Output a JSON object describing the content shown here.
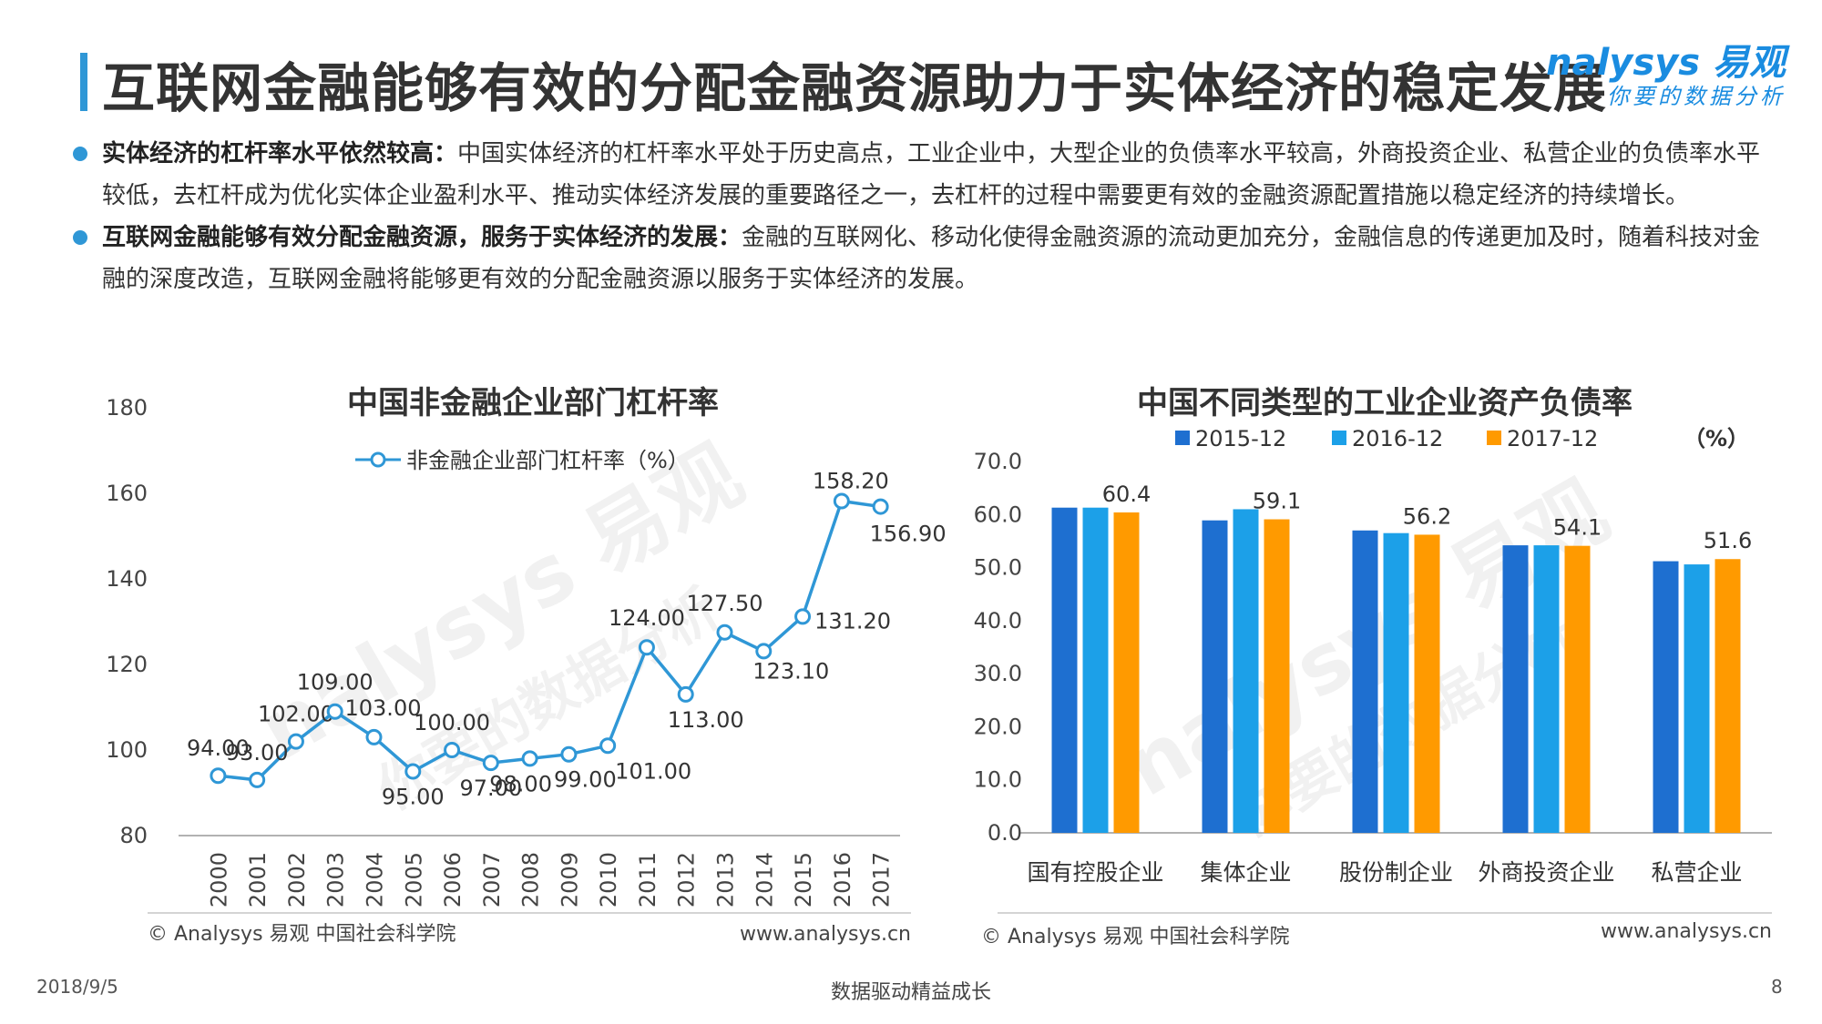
{
  "header": {
    "title": "互联网金融能够有效的分配金融资源助力于实体经济的稳定发展",
    "logo_text": "nalysys 易观",
    "logo_sub": "你要的数据分析"
  },
  "bullets": [
    {
      "bold": "实体经济的杠杆率水平依然较高：",
      "text": "中国实体经济的杠杆率水平处于历史高点，工业企业中，大型企业的负债率水平较高，外商投资企业、私营企业的负债率水平较低，去杠杆成为优化实体企业盈利水平、推动实体经济发展的重要路径之一，去杠杆的过程中需要更有效的金融资源配置措施以稳定经济的持续增长。"
    },
    {
      "bold": "互联网金融能够有效分配金融资源，服务于实体经济的发展：",
      "text": "金融的互联网化、移动化使得金融资源的流动更加充分，金融信息的传递更加及时，随着科技对金融的深度改造，互联网金融将能够更有效的分配金融资源以服务于实体经济的发展。"
    }
  ],
  "chart_data": [
    {
      "type": "line",
      "title": "中国非金融企业部门杠杆率",
      "series": [
        {
          "name": "非金融企业部门杠杆率（%）",
          "x": [
            "2000",
            "2001",
            "2002",
            "2003",
            "2004",
            "2005",
            "2006",
            "2007",
            "2008",
            "2009",
            "2010",
            "2011",
            "2012",
            "2013",
            "2014",
            "2015",
            "2016",
            "2017"
          ],
          "values": [
            94.0,
            93.0,
            102.0,
            109.0,
            103.0,
            95.0,
            100.0,
            97.0,
            98.0,
            99.0,
            101.0,
            124.0,
            113.0,
            127.5,
            123.1,
            131.2,
            158.2,
            156.9
          ]
        }
      ],
      "value_labels": [
        "94.00",
        "93.00",
        "102.00",
        "109.00",
        "103.00",
        "95.00",
        "100.00",
        "97.00",
        "98.00",
        "99.00",
        "101.00",
        "124.00",
        "113.00",
        "127.50",
        "123.10",
        "131.20",
        "158.20",
        "156.90"
      ],
      "ylim": [
        80,
        180
      ],
      "yticks": [
        "80",
        "100",
        "120",
        "140",
        "160",
        "180"
      ],
      "color": "#2f97d6",
      "source": "© Analysys 易观 中国社会科学院",
      "url": "www.analysys.cn"
    },
    {
      "type": "bar",
      "title": "中国不同类型的工业企业资产负债率",
      "unit": "（%）",
      "categories": [
        "国有控股企业",
        "集体企业",
        "股份制企业",
        "外商投资企业",
        "私营企业"
      ],
      "series": [
        {
          "name": "2015-12",
          "color": "#1e6fd0",
          "values": [
            61.3,
            58.9,
            57.0,
            54.2,
            51.2
          ]
        },
        {
          "name": "2016-12",
          "color": "#1ca0e8",
          "values": [
            61.3,
            61.0,
            56.5,
            54.2,
            50.6
          ]
        },
        {
          "name": "2017-12",
          "color": "#ff9a00",
          "values": [
            60.4,
            59.1,
            56.2,
            54.1,
            51.6
          ]
        }
      ],
      "value_labels": [
        "60.4",
        "59.1",
        "56.2",
        "54.1",
        "51.6"
      ],
      "ylim": [
        0,
        70
      ],
      "yticks": [
        "0.0",
        "10.0",
        "20.0",
        "30.0",
        "40.0",
        "50.0",
        "60.0",
        "70.0"
      ],
      "source": "© Analysys 易观 中国社会科学院",
      "url": "www.analysys.cn"
    }
  ],
  "footer": {
    "date": "2018/9/5",
    "center": "数据驱动精益成长",
    "page": "8"
  },
  "watermark": {
    "brand": "nalysys 易观",
    "sub": "你要的数据分析"
  }
}
